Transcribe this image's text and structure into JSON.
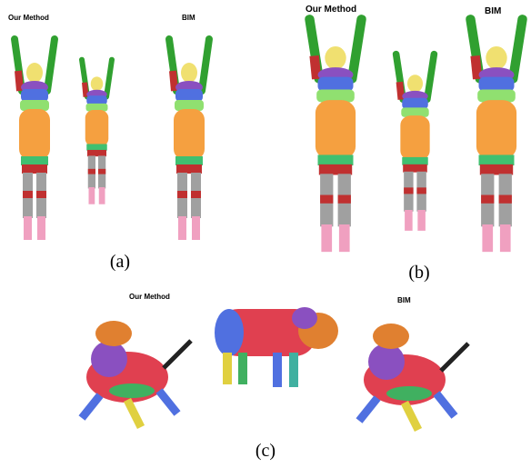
{
  "panels": [
    {
      "left_title": "Our Method",
      "right_title": "BIM",
      "caption": "(a)"
    },
    {
      "left_title": "Our Method",
      "right_title": "BIM",
      "caption": "(b)"
    },
    {
      "left_title": "Our Method",
      "right_title": "BIM",
      "caption": "(c)"
    }
  ]
}
